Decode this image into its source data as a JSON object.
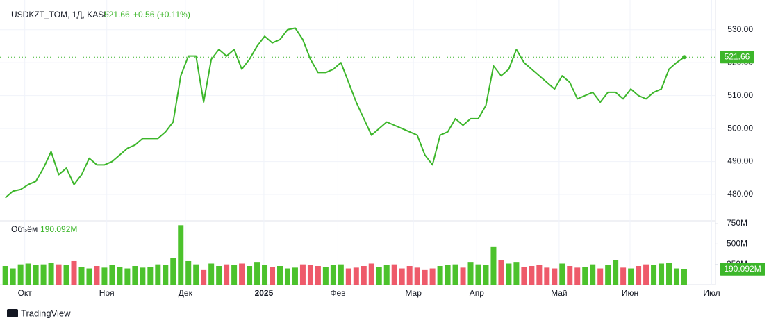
{
  "chart_data": {
    "type": "line",
    "title": "USDKZT_TOM, 1Д, KASE",
    "last_value": 521.66,
    "change_label": "+0.56 (+0.11%)",
    "volume_title": "Объём",
    "volume_last": {
      "value": 190.092,
      "label": "190.092M"
    },
    "brand": "TradingView",
    "xlim": [
      -0.7,
      93.1
    ],
    "xticks": [
      {
        "value": 2.55,
        "label": "Окт"
      },
      {
        "value": 13.3,
        "label": "Ноя"
      },
      {
        "value": 23.6,
        "label": "Дек"
      },
      {
        "value": 33.9,
        "label": "2025"
      },
      {
        "value": 43.6,
        "label": "Фев"
      },
      {
        "value": 53.5,
        "label": "Мар"
      },
      {
        "value": 61.8,
        "label": "Апр"
      },
      {
        "value": 72.6,
        "label": "Май"
      },
      {
        "value": 81.9,
        "label": "Июн"
      },
      {
        "value": 92.6,
        "label": "Июл"
      }
    ],
    "ylim": [
      472,
      539
    ],
    "yticks": [
      {
        "value": 480,
        "label": "480.00"
      },
      {
        "value": 490,
        "label": "490.00"
      },
      {
        "value": 500,
        "label": "500.00"
      },
      {
        "value": 510,
        "label": "510.00"
      },
      {
        "value": 520,
        "label": "520.00"
      },
      {
        "value": 530,
        "label": "530.00"
      }
    ],
    "vlim": [
      0,
      784
    ],
    "vticks": [
      {
        "value": 250,
        "label": "250M"
      },
      {
        "value": 500,
        "label": "500M"
      },
      {
        "value": 750,
        "label": "750M"
      }
    ],
    "grid": true,
    "series": [
      {
        "color": "#3cb62a",
        "values": [
          479,
          481,
          481.5,
          483,
          484,
          488,
          493,
          486,
          488,
          483,
          486,
          491,
          489,
          489,
          490,
          492,
          494,
          495,
          497,
          497,
          497,
          499,
          502,
          516,
          522,
          522,
          508,
          521,
          524,
          522,
          524,
          518,
          521,
          525,
          528,
          526,
          527,
          530,
          530.5,
          527,
          521,
          517,
          517,
          518,
          520,
          514,
          508,
          503,
          498,
          500,
          502,
          501,
          500,
          499,
          498,
          492,
          489,
          498,
          499,
          503,
          501,
          503,
          503,
          507,
          519,
          516,
          518,
          524,
          520,
          518,
          516,
          514,
          512,
          516,
          514,
          509,
          510,
          511,
          508,
          511,
          511,
          509,
          512,
          510,
          509,
          511,
          512,
          518,
          520,
          521.66
        ]
      },
      {
        "name": "Объём",
        "up_color": "#4cc22c",
        "down_color": "#ee5a6a",
        "values": [
          230,
          200,
          250,
          260,
          240,
          250,
          270,
          250,
          240,
          290,
          220,
          200,
          230,
          210,
          240,
          220,
          200,
          230,
          210,
          220,
          250,
          240,
          330,
          730,
          290,
          250,
          180,
          260,
          230,
          250,
          240,
          260,
          230,
          280,
          240,
          220,
          230,
          200,
          210,
          250,
          240,
          230,
          220,
          240,
          250,
          200,
          210,
          230,
          260,
          220,
          240,
          250,
          200,
          230,
          210,
          180,
          200,
          230,
          240,
          250,
          210,
          280,
          250,
          240,
          470,
          300,
          260,
          280,
          220,
          230,
          240,
          210,
          200,
          260,
          230,
          210,
          220,
          250,
          200,
          240,
          300,
          210,
          200,
          230,
          250,
          240,
          260,
          270,
          200,
          190.092
        ]
      }
    ]
  }
}
